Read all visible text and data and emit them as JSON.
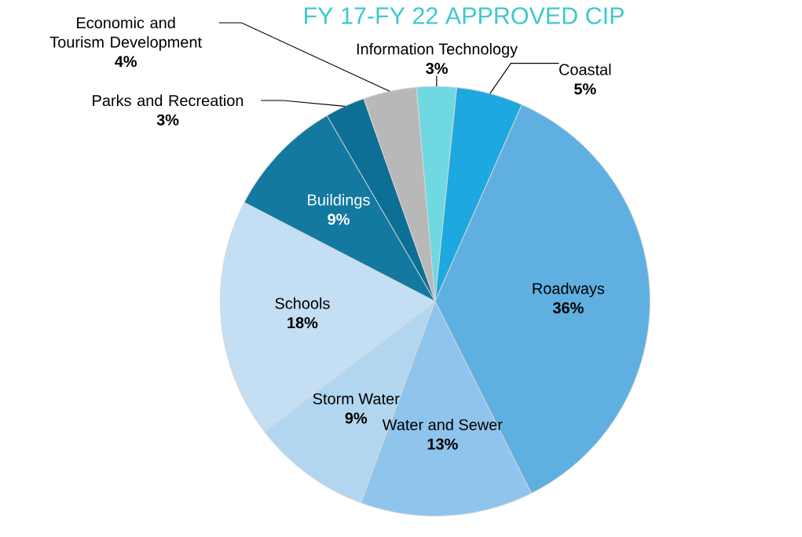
{
  "chart_data": {
    "type": "pie",
    "title": "FY 17-FY 22 APPROVED CIP",
    "categories": [
      "Information Technology",
      "Coastal",
      "Roadways",
      "Water and Sewer",
      "Storm Water",
      "Schools",
      "Buildings",
      "Parks and Recreation",
      "Economic and Tourism Development"
    ],
    "values": [
      3,
      5,
      36,
      13,
      9,
      18,
      9,
      3,
      4
    ],
    "colors": [
      "#6fd8e0",
      "#1da8e0",
      "#5fb0e0",
      "#8fc4ec",
      "#b3d6f0",
      "#c4def4",
      "#1479a0",
      "#0e6f96",
      "#b8b8b8"
    ],
    "value_labels": [
      "3%",
      "5%",
      "36%",
      "13%",
      "9%",
      "18%",
      "9%",
      "3%",
      "4%"
    ]
  }
}
